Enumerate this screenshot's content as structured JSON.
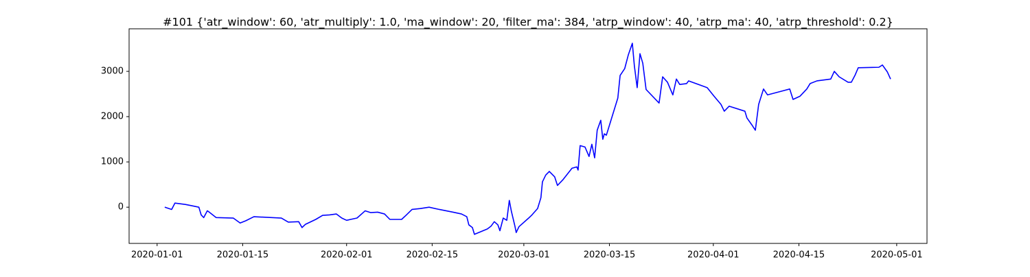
{
  "chart_data": {
    "type": "line",
    "title": "#101 {'atr_window': 60, 'atr_multiply': 1.0, 'ma_window': 20, 'filter_ma': 384, 'atrp_window': 40, 'atrp_ma': 40, 'atrp_threshold': 0.2}",
    "color": "#0000ff",
    "x": [
      "2020-01-02T06:00",
      "2020-01-03T09:00",
      "2020-01-03T22:00",
      "2020-01-05T15:00",
      "2020-01-06T18:00",
      "2020-01-07T20:00",
      "2020-01-08T05:00",
      "2020-01-08T15:00",
      "2020-01-09T05:00",
      "2020-01-09T13:00",
      "2020-01-10T16:00",
      "2020-01-13T11:00",
      "2020-01-14T14:00",
      "2020-01-15T12:00",
      "2020-01-16T20:00",
      "2020-01-21T08:00",
      "2020-01-22T11:00",
      "2020-01-24T04:00",
      "2020-01-24T17:00",
      "2020-01-25T06:00",
      "2020-01-26T23:00",
      "2020-01-28T02:00",
      "2020-01-29T05:00",
      "2020-01-30T08:00",
      "2020-01-31T05:00",
      "2020-02-01T00:00",
      "2020-02-02T17:00",
      "2020-02-04T01:00",
      "2020-02-04T23:00",
      "2020-02-06T02:00",
      "2020-02-07T05:00",
      "2020-02-08T02:00",
      "2020-02-10T00:00",
      "2020-02-10T19:00",
      "2020-02-11T17:00",
      "2020-02-13T01:00",
      "2020-02-14T12:00",
      "2020-02-16T04:00",
      "2020-02-18T10:00",
      "2020-02-19T19:00",
      "2020-02-20T16:00",
      "2020-02-21T00:00",
      "2020-02-21T14:00",
      "2020-02-21T22:00",
      "2020-02-24T01:00",
      "2020-02-24T15:00",
      "2020-02-25T04:00",
      "2020-02-25T18:00",
      "2020-02-26T02:00",
      "2020-02-26T15:00",
      "2020-02-27T05:00",
      "2020-02-27T15:00",
      "2020-02-27T23:00",
      "2020-02-28T13:00",
      "2020-02-28T18:00",
      "2020-02-29T05:00",
      "2020-03-01T19:00",
      "2020-03-02T08:00",
      "2020-03-03T06:00",
      "2020-03-03T19:00",
      "2020-03-04T01:00",
      "2020-03-04T14:00",
      "2020-03-05T04:00",
      "2020-03-06T01:00",
      "2020-03-06T12:00",
      "2020-03-07T10:00",
      "2020-03-08T21:00",
      "2020-03-09T16:00",
      "2020-03-09T21:00",
      "2020-03-10T05:00",
      "2020-03-11T00:00",
      "2020-03-11T16:00",
      "2020-03-12T03:00",
      "2020-03-12T14:00",
      "2020-03-13T00:00",
      "2020-03-13T14:00",
      "2020-03-13T22:00",
      "2020-03-14T04:00",
      "2020-03-14T12:00",
      "2020-03-16T09:00",
      "2020-03-16T18:00",
      "2020-03-17T12:00",
      "2020-03-18T02:00",
      "2020-03-18T18:00",
      "2020-03-19T02:00",
      "2020-03-19T13:00",
      "2020-03-20T00:00",
      "2020-03-20T11:00",
      "2020-03-21T00:00",
      "2020-03-23T03:00",
      "2020-03-23T17:00",
      "2020-03-24T12:00",
      "2020-03-25T09:00",
      "2020-03-25T23:00",
      "2020-03-26T12:00",
      "2020-03-27T15:00",
      "2020-03-27T23:00",
      "2020-03-31T00:00",
      "2020-04-01T03:00",
      "2020-04-02T06:00",
      "2020-04-02T19:00",
      "2020-04-03T14:00",
      "2020-04-06T04:00",
      "2020-04-06T12:00",
      "2020-04-07T07:00",
      "2020-04-07T21:00",
      "2020-04-08T10:00",
      "2020-04-09T05:00",
      "2020-04-09T21:00",
      "2020-04-13T12:00",
      "2020-04-14T01:00",
      "2020-04-15T04:00",
      "2020-04-16T07:00",
      "2020-04-16T20:00",
      "2020-04-17T23:00",
      "2020-04-20T05:00",
      "2020-04-20T19:00",
      "2020-04-21T14:00",
      "2020-04-23T01:00",
      "2020-04-23T14:00",
      "2020-04-24T04:00",
      "2020-04-24T17:00",
      "2020-04-28T02:00",
      "2020-04-28T16:00",
      "2020-04-29T11:00",
      "2020-04-30T00:00"
    ],
    "values": [
      0,
      -50,
      90,
      60,
      30,
      0,
      -170,
      -230,
      -80,
      -110,
      -230,
      -240,
      -350,
      -300,
      -210,
      -240,
      -330,
      -320,
      -450,
      -380,
      -270,
      -180,
      -170,
      -150,
      -240,
      -290,
      -240,
      -80,
      -120,
      -110,
      -150,
      -270,
      -270,
      -170,
      -50,
      -30,
      0,
      -50,
      -110,
      -150,
      -210,
      -390,
      -450,
      -600,
      -480,
      -420,
      -320,
      -390,
      -520,
      -240,
      -290,
      150,
      -90,
      -420,
      -560,
      -430,
      -240,
      -170,
      -30,
      210,
      560,
      710,
      790,
      670,
      480,
      610,
      860,
      890,
      820,
      1360,
      1330,
      1120,
      1390,
      1090,
      1700,
      1920,
      1500,
      1620,
      1590,
      2410,
      2910,
      3060,
      3360,
      3620,
      3120,
      2640,
      3390,
      3180,
      2600,
      2300,
      2880,
      2760,
      2480,
      2830,
      2710,
      2730,
      2790,
      2640,
      2450,
      2270,
      2120,
      2230,
      2120,
      1970,
      1820,
      1700,
      2270,
      2610,
      2480,
      2610,
      2380,
      2450,
      2610,
      2730,
      2790,
      2830,
      3000,
      2880,
      2760,
      2760,
      2910,
      3080,
      3090,
      3140,
      2990,
      2830
    ],
    "xlim": [
      "2019-12-27T10:00",
      "2020-05-05T23:00"
    ],
    "xticks": [
      "2020-01-01",
      "2020-01-15",
      "2020-02-01",
      "2020-02-15",
      "2020-03-01",
      "2020-03-15",
      "2020-04-01",
      "2020-04-15",
      "2020-05-01"
    ],
    "ylim": [
      -800,
      3940
    ],
    "yticks": [
      0,
      1000,
      2000,
      3000
    ]
  }
}
